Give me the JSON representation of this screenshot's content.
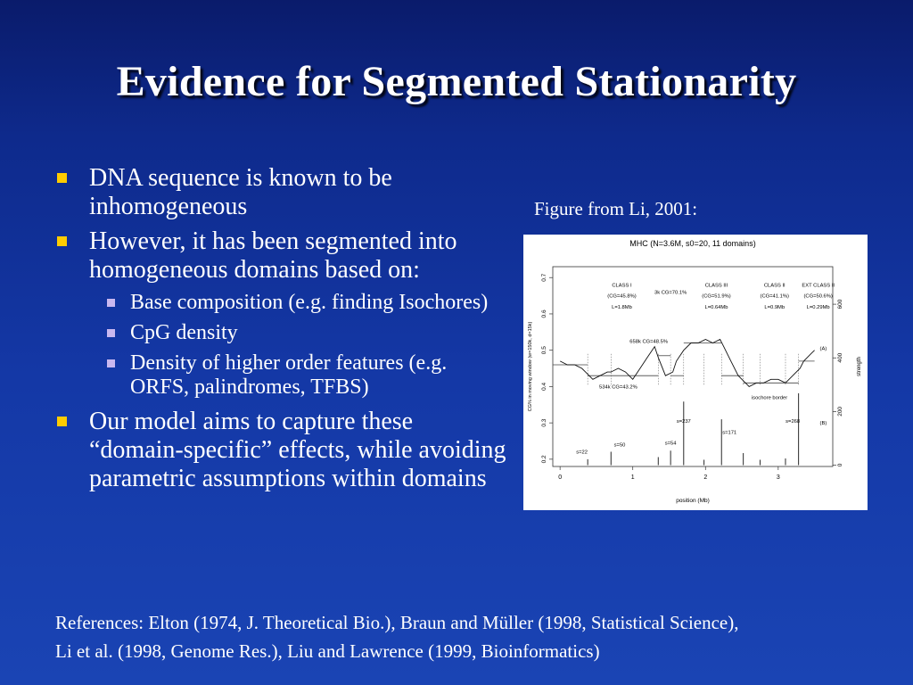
{
  "slide": {
    "title": "Evidence for Segmented Stationarity",
    "bullets": [
      {
        "text": "DNA sequence is known to be inhomogeneous"
      },
      {
        "text": "However, it has been segmented into homogeneous domains based on:",
        "subbullets": [
          "Base composition (e.g. finding Isochores)",
          "CpG density",
          "Density of  higher order features (e.g. ORFS, palindromes, TFBS)"
        ]
      },
      {
        "text": "Our model aims to capture these “domain-specific” effects, while avoiding parametric assumptions within domains"
      }
    ],
    "figure_caption": "Figure from Li, 2001:",
    "references": [
      "References: Elton (1974, J. Theoretical Bio.), Braun and Müller (1998, Statistical Science),",
      "Li et al. (1998, Genome Res.), Liu and Lawrence (1999, Bioinformatics)"
    ],
    "colors": {
      "bullet_main": "#ffcc00",
      "bullet_sub": "#c9b8f0",
      "background": "#1438a6"
    }
  },
  "chart_data": {
    "type": "line",
    "title": "MHC (N=3.6M, s0=20, 11 domains)",
    "xlabel": "position (Mb)",
    "ylabel": "CG% in moving window (w=150k, d=15k)",
    "y2label": "strength",
    "xlim": [
      -0.1,
      3.75
    ],
    "ylim": [
      0.18,
      0.73
    ],
    "y2lim": [
      -5,
      740
    ],
    "xticks": [
      "0",
      "1",
      "2",
      "3"
    ],
    "xtick_values": [
      0,
      1,
      2,
      3
    ],
    "yticks": [
      "0.2",
      "0.3",
      "0.4",
      "0.5",
      "0.6",
      "0.7"
    ],
    "ytick_values": [
      0.2,
      0.3,
      0.4,
      0.5,
      0.6,
      0.7
    ],
    "y2ticks": [
      "0",
      "200",
      "400",
      "600"
    ],
    "y2tick_values": [
      0,
      200,
      400,
      600
    ],
    "series": [
      {
        "name": "(A)",
        "x": [
          0,
          0.1,
          0.2,
          0.3,
          0.35,
          0.45,
          0.55,
          0.65,
          0.7,
          0.8,
          0.9,
          1.0,
          1.1,
          1.2,
          1.3,
          1.35,
          1.45,
          1.55,
          1.6,
          1.7,
          1.8,
          1.9,
          2.0,
          2.1,
          2.2,
          2.25,
          2.35,
          2.45,
          2.55,
          2.6,
          2.7,
          2.8,
          2.9,
          3.0,
          3.1,
          3.2,
          3.3,
          3.35,
          3.45,
          3.5
        ],
        "y": [
          0.47,
          0.46,
          0.46,
          0.45,
          0.44,
          0.42,
          0.43,
          0.44,
          0.44,
          0.45,
          0.44,
          0.42,
          0.45,
          0.48,
          0.51,
          0.48,
          0.43,
          0.44,
          0.47,
          0.5,
          0.52,
          0.52,
          0.53,
          0.52,
          0.53,
          0.51,
          0.47,
          0.43,
          0.41,
          0.4,
          0.41,
          0.41,
          0.42,
          0.42,
          0.41,
          0.43,
          0.45,
          0.47,
          0.49,
          0.5
        ]
      }
    ],
    "segment_levels": [
      {
        "x": [
          -0.1,
          0.38
        ],
        "y": 0.46
      },
      {
        "x": [
          0.38,
          1.35
        ],
        "y": 0.43
      },
      {
        "x": [
          1.35,
          1.52
        ],
        "y": 0.485
      },
      {
        "x": [
          1.52,
          1.7
        ],
        "y": 0.43
      },
      {
        "x": [
          1.7,
          2.22
        ],
        "y": 0.52
      },
      {
        "x": [
          2.22,
          2.52
        ],
        "y": 0.43
      },
      {
        "x": [
          2.52,
          3.28
        ],
        "y": 0.41
      },
      {
        "x": [
          3.28,
          3.5
        ],
        "y": 0.47
      }
    ],
    "strength_spikes": {
      "name": "(B)",
      "x": [
        0.38,
        0.7,
        1.35,
        1.52,
        1.7,
        1.98,
        2.22,
        2.52,
        2.75,
        3.1,
        3.28
      ],
      "strength": [
        22,
        50,
        30,
        54,
        237,
        20,
        171,
        45,
        20,
        25,
        268
      ]
    },
    "annotations": [
      {
        "text": "CLASS I",
        "x": 0.85,
        "y": 0.675
      },
      {
        "text": "(CG=45.8%)",
        "x": 0.85,
        "y": 0.645
      },
      {
        "text": "L=1.8Mb",
        "x": 0.85,
        "y": 0.615
      },
      {
        "text": "3k CG=70.1%",
        "x": 1.52,
        "y": 0.655
      },
      {
        "text": "CLASS III",
        "x": 2.15,
        "y": 0.675
      },
      {
        "text": "(CG=51.9%)",
        "x": 2.15,
        "y": 0.645
      },
      {
        "text": "L=0.64Mb",
        "x": 2.15,
        "y": 0.615
      },
      {
        "text": "CLASS II",
        "x": 2.95,
        "y": 0.675
      },
      {
        "text": "(CG=41.1%)",
        "x": 2.95,
        "y": 0.645
      },
      {
        "text": "L=0.9Mb",
        "x": 2.95,
        "y": 0.615
      },
      {
        "text": "EXT CLASS II",
        "x": 3.55,
        "y": 0.675
      },
      {
        "text": "(CG=50.6%)",
        "x": 3.55,
        "y": 0.645
      },
      {
        "text": "L=0.29Mb",
        "x": 3.55,
        "y": 0.615
      },
      {
        "text": "658k CG=48.5%",
        "x": 1.22,
        "y": 0.52
      },
      {
        "text": "534k CG=43.2%",
        "x": 0.8,
        "y": 0.395
      },
      {
        "text": "isochore border",
        "x": 2.88,
        "y": 0.365
      },
      {
        "text": "s=22",
        "x": 0.3,
        "y": 0.215
      },
      {
        "text": "s=50",
        "x": 0.82,
        "y": 0.235
      },
      {
        "text": "s=54",
        "x": 1.52,
        "y": 0.24
      },
      {
        "text": "s=237",
        "x": 1.7,
        "y": 0.3
      },
      {
        "text": "s=171",
        "x": 2.33,
        "y": 0.27
      },
      {
        "text": "s=268",
        "x": 3.2,
        "y": 0.3
      },
      {
        "text": "(A)",
        "x": 3.62,
        "y": 0.5
      },
      {
        "text": "(B)",
        "x": 3.62,
        "y": 0.295
      }
    ]
  }
}
